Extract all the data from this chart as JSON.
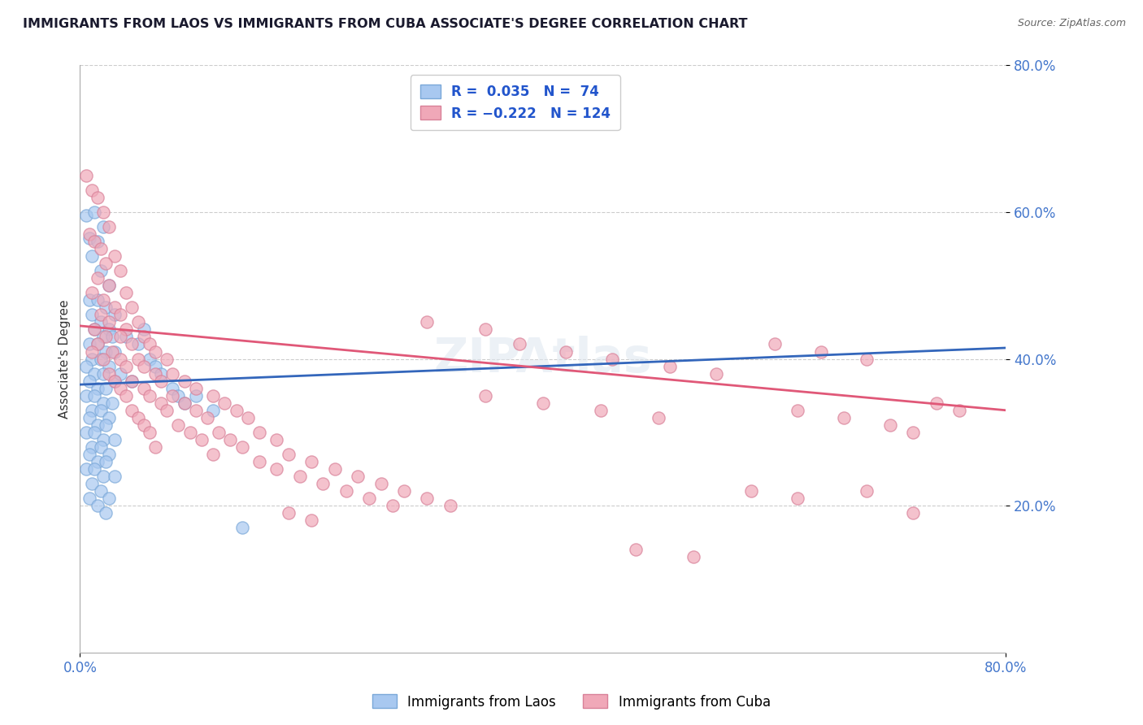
{
  "title": "IMMIGRANTS FROM LAOS VS IMMIGRANTS FROM CUBA ASSOCIATE'S DEGREE CORRELATION CHART",
  "source_text": "Source: ZipAtlas.com",
  "ylabel": "Associate's Degree",
  "xlim": [
    0.0,
    0.8
  ],
  "ylim": [
    0.0,
    0.8
  ],
  "laos_color": "#a8c8f0",
  "laos_edge_color": "#7aa8d8",
  "cuba_color": "#f0a8b8",
  "cuba_edge_color": "#d88098",
  "laos_line_color": "#3366bb",
  "cuba_line_color": "#e05878",
  "grid_color": "#cccccc",
  "r_laos": 0.035,
  "n_laos": 74,
  "r_cuba": -0.222,
  "n_cuba": 124,
  "legend_label_laos": "Immigrants from Laos",
  "legend_label_cuba": "Immigrants from Cuba",
  "laos_trend": [
    0.0,
    0.8,
    0.365,
    0.415
  ],
  "cuba_trend": [
    0.0,
    0.8,
    0.445,
    0.33
  ],
  "laos_scatter": [
    [
      0.005,
      0.595
    ],
    [
      0.008,
      0.565
    ],
    [
      0.012,
      0.6
    ],
    [
      0.015,
      0.56
    ],
    [
      0.018,
      0.52
    ],
    [
      0.01,
      0.54
    ],
    [
      0.02,
      0.58
    ],
    [
      0.025,
      0.5
    ],
    [
      0.008,
      0.48
    ],
    [
      0.015,
      0.48
    ],
    [
      0.022,
      0.47
    ],
    [
      0.03,
      0.46
    ],
    [
      0.01,
      0.46
    ],
    [
      0.018,
      0.45
    ],
    [
      0.025,
      0.44
    ],
    [
      0.012,
      0.44
    ],
    [
      0.02,
      0.43
    ],
    [
      0.028,
      0.43
    ],
    [
      0.008,
      0.42
    ],
    [
      0.015,
      0.42
    ],
    [
      0.022,
      0.41
    ],
    [
      0.03,
      0.41
    ],
    [
      0.01,
      0.4
    ],
    [
      0.018,
      0.4
    ],
    [
      0.025,
      0.39
    ],
    [
      0.005,
      0.39
    ],
    [
      0.012,
      0.38
    ],
    [
      0.02,
      0.38
    ],
    [
      0.03,
      0.37
    ],
    [
      0.008,
      0.37
    ],
    [
      0.015,
      0.36
    ],
    [
      0.022,
      0.36
    ],
    [
      0.005,
      0.35
    ],
    [
      0.012,
      0.35
    ],
    [
      0.02,
      0.34
    ],
    [
      0.028,
      0.34
    ],
    [
      0.01,
      0.33
    ],
    [
      0.018,
      0.33
    ],
    [
      0.025,
      0.32
    ],
    [
      0.008,
      0.32
    ],
    [
      0.015,
      0.31
    ],
    [
      0.022,
      0.31
    ],
    [
      0.005,
      0.3
    ],
    [
      0.012,
      0.3
    ],
    [
      0.02,
      0.29
    ],
    [
      0.03,
      0.29
    ],
    [
      0.01,
      0.28
    ],
    [
      0.018,
      0.28
    ],
    [
      0.025,
      0.27
    ],
    [
      0.008,
      0.27
    ],
    [
      0.015,
      0.26
    ],
    [
      0.022,
      0.26
    ],
    [
      0.005,
      0.25
    ],
    [
      0.012,
      0.25
    ],
    [
      0.02,
      0.24
    ],
    [
      0.03,
      0.24
    ],
    [
      0.01,
      0.23
    ],
    [
      0.018,
      0.22
    ],
    [
      0.025,
      0.21
    ],
    [
      0.008,
      0.21
    ],
    [
      0.015,
      0.2
    ],
    [
      0.022,
      0.19
    ],
    [
      0.035,
      0.38
    ],
    [
      0.045,
      0.37
    ],
    [
      0.04,
      0.43
    ],
    [
      0.05,
      0.42
    ],
    [
      0.055,
      0.44
    ],
    [
      0.06,
      0.4
    ],
    [
      0.065,
      0.39
    ],
    [
      0.07,
      0.38
    ],
    [
      0.08,
      0.36
    ],
    [
      0.085,
      0.35
    ],
    [
      0.09,
      0.34
    ],
    [
      0.1,
      0.35
    ],
    [
      0.115,
      0.33
    ],
    [
      0.14,
      0.17
    ]
  ],
  "cuba_scatter": [
    [
      0.005,
      0.65
    ],
    [
      0.01,
      0.63
    ],
    [
      0.015,
      0.62
    ],
    [
      0.02,
      0.6
    ],
    [
      0.025,
      0.58
    ],
    [
      0.008,
      0.57
    ],
    [
      0.012,
      0.56
    ],
    [
      0.018,
      0.55
    ],
    [
      0.03,
      0.54
    ],
    [
      0.022,
      0.53
    ],
    [
      0.035,
      0.52
    ],
    [
      0.015,
      0.51
    ],
    [
      0.025,
      0.5
    ],
    [
      0.04,
      0.49
    ],
    [
      0.01,
      0.49
    ],
    [
      0.02,
      0.48
    ],
    [
      0.03,
      0.47
    ],
    [
      0.045,
      0.47
    ],
    [
      0.018,
      0.46
    ],
    [
      0.035,
      0.46
    ],
    [
      0.05,
      0.45
    ],
    [
      0.025,
      0.45
    ],
    [
      0.012,
      0.44
    ],
    [
      0.04,
      0.44
    ],
    [
      0.055,
      0.43
    ],
    [
      0.022,
      0.43
    ],
    [
      0.035,
      0.43
    ],
    [
      0.06,
      0.42
    ],
    [
      0.015,
      0.42
    ],
    [
      0.045,
      0.42
    ],
    [
      0.028,
      0.41
    ],
    [
      0.065,
      0.41
    ],
    [
      0.01,
      0.41
    ],
    [
      0.05,
      0.4
    ],
    [
      0.035,
      0.4
    ],
    [
      0.075,
      0.4
    ],
    [
      0.02,
      0.4
    ],
    [
      0.055,
      0.39
    ],
    [
      0.04,
      0.39
    ],
    [
      0.08,
      0.38
    ],
    [
      0.025,
      0.38
    ],
    [
      0.065,
      0.38
    ],
    [
      0.09,
      0.37
    ],
    [
      0.045,
      0.37
    ],
    [
      0.03,
      0.37
    ],
    [
      0.07,
      0.37
    ],
    [
      0.1,
      0.36
    ],
    [
      0.055,
      0.36
    ],
    [
      0.035,
      0.36
    ],
    [
      0.08,
      0.35
    ],
    [
      0.115,
      0.35
    ],
    [
      0.06,
      0.35
    ],
    [
      0.04,
      0.35
    ],
    [
      0.09,
      0.34
    ],
    [
      0.125,
      0.34
    ],
    [
      0.07,
      0.34
    ],
    [
      0.045,
      0.33
    ],
    [
      0.1,
      0.33
    ],
    [
      0.135,
      0.33
    ],
    [
      0.075,
      0.33
    ],
    [
      0.05,
      0.32
    ],
    [
      0.11,
      0.32
    ],
    [
      0.145,
      0.32
    ],
    [
      0.085,
      0.31
    ],
    [
      0.055,
      0.31
    ],
    [
      0.12,
      0.3
    ],
    [
      0.155,
      0.3
    ],
    [
      0.095,
      0.3
    ],
    [
      0.06,
      0.3
    ],
    [
      0.13,
      0.29
    ],
    [
      0.17,
      0.29
    ],
    [
      0.105,
      0.29
    ],
    [
      0.065,
      0.28
    ],
    [
      0.14,
      0.28
    ],
    [
      0.18,
      0.27
    ],
    [
      0.115,
      0.27
    ],
    [
      0.2,
      0.26
    ],
    [
      0.155,
      0.26
    ],
    [
      0.22,
      0.25
    ],
    [
      0.17,
      0.25
    ],
    [
      0.24,
      0.24
    ],
    [
      0.19,
      0.24
    ],
    [
      0.26,
      0.23
    ],
    [
      0.21,
      0.23
    ],
    [
      0.28,
      0.22
    ],
    [
      0.23,
      0.22
    ],
    [
      0.3,
      0.21
    ],
    [
      0.25,
      0.21
    ],
    [
      0.32,
      0.2
    ],
    [
      0.27,
      0.2
    ],
    [
      0.35,
      0.35
    ],
    [
      0.4,
      0.34
    ],
    [
      0.45,
      0.33
    ],
    [
      0.5,
      0.32
    ],
    [
      0.38,
      0.42
    ],
    [
      0.42,
      0.41
    ],
    [
      0.46,
      0.4
    ],
    [
      0.51,
      0.39
    ],
    [
      0.55,
      0.38
    ],
    [
      0.6,
      0.42
    ],
    [
      0.64,
      0.41
    ],
    [
      0.68,
      0.4
    ],
    [
      0.62,
      0.33
    ],
    [
      0.66,
      0.32
    ],
    [
      0.7,
      0.31
    ],
    [
      0.72,
      0.3
    ],
    [
      0.58,
      0.22
    ],
    [
      0.62,
      0.21
    ],
    [
      0.48,
      0.14
    ],
    [
      0.53,
      0.13
    ],
    [
      0.72,
      0.19
    ],
    [
      0.68,
      0.22
    ],
    [
      0.74,
      0.34
    ],
    [
      0.76,
      0.33
    ],
    [
      0.3,
      0.45
    ],
    [
      0.35,
      0.44
    ],
    [
      0.18,
      0.19
    ],
    [
      0.2,
      0.18
    ]
  ]
}
